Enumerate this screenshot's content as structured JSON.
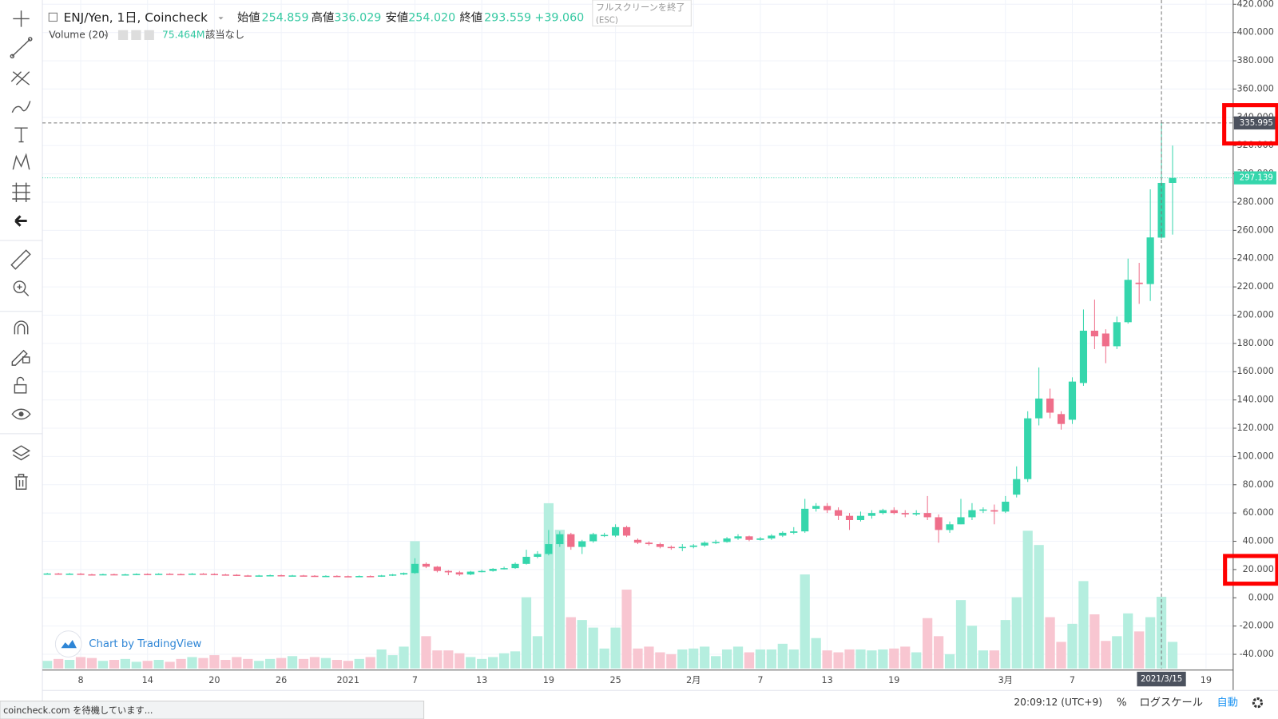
{
  "header": {
    "symbol": "ENJ/Yen, 1日, Coincheck",
    "ohlc": [
      {
        "label": "始値",
        "value": "254.859"
      },
      {
        "label": "高値",
        "value": "336.029"
      },
      {
        "label": "安値",
        "value": "254.020"
      },
      {
        "label": "終値",
        "value": "293.559"
      }
    ],
    "change": "+39.060",
    "volume_title": "Volume (20)",
    "volume_value": "75.464M",
    "volume_note": "該当なし"
  },
  "tooltip": {
    "line1": "フルスクリーンを終了",
    "line2": "(ESC)"
  },
  "watermark": "Chart by TradingView",
  "bottom_bar": {
    "time": "20:09:12 (UTC+9)",
    "percent": "%",
    "log": "ログスケール",
    "auto": "自動"
  },
  "status": "coincheck.com を待機しています...",
  "chart_data": {
    "type": "candlestick",
    "categories": [
      null,
      null,
      null,
      "8",
      null,
      null,
      null,
      null,
      null,
      "14",
      null,
      null,
      null,
      null,
      null,
      "20",
      null,
      null,
      null,
      null,
      null,
      "26",
      null,
      null,
      null,
      null,
      null,
      "2021",
      null,
      null,
      null,
      null,
      null,
      "7",
      null,
      null,
      null,
      null,
      null,
      "13",
      null,
      null,
      null,
      null,
      null,
      "19",
      null,
      null,
      null,
      null,
      null,
      "25",
      null,
      null,
      null,
      null,
      null,
      null,
      "2月",
      null,
      null,
      null,
      null,
      null,
      "7",
      null,
      null,
      null,
      null,
      null,
      "13",
      null,
      null,
      null,
      null,
      null,
      "19",
      null,
      null,
      null,
      null,
      null,
      null,
      null,
      null,
      null,
      "3月",
      null,
      null,
      null,
      null,
      null,
      "7",
      null,
      null,
      null,
      null,
      null,
      null,
      null,
      "2021/3/15",
      null,
      null,
      null,
      "19"
    ],
    "open": [
      17.0,
      17.2,
      16.8,
      17.1,
      16.6,
      16.5,
      16.7,
      16.4,
      16.6,
      16.9,
      16.7,
      17.0,
      16.8,
      16.6,
      17.1,
      16.9,
      16.5,
      16.3,
      15.8,
      15.4,
      15.8,
      16.0,
      15.5,
      15.8,
      15.6,
      15.2,
      15.5,
      15.3,
      15.0,
      15.4,
      15.2,
      15.8,
      16.5,
      17.5,
      24,
      22,
      19,
      18,
      16.5,
      18.5,
      19,
      20.5,
      21,
      24,
      29,
      31,
      38,
      45,
      36,
      40,
      44,
      44,
      50,
      41,
      39,
      38,
      36,
      35.5,
      36,
      37,
      39,
      39.5,
      42,
      43.5,
      41,
      42,
      44,
      46,
      47,
      63,
      65,
      62,
      58,
      55,
      58,
      60,
      62,
      60,
      59,
      60,
      57,
      48,
      52,
      57,
      62,
      62,
      61,
      73,
      84,
      127,
      141,
      130,
      126,
      152,
      189,
      187,
      178,
      195,
      223,
      222,
      254.859,
      293.559,
      null,
      null,
      null
    ],
    "close": [
      17.2,
      16.8,
      17.1,
      16.6,
      16.5,
      16.7,
      16.4,
      16.6,
      16.9,
      16.7,
      17.0,
      16.8,
      16.6,
      17.1,
      16.9,
      16.5,
      16.3,
      15.8,
      15.4,
      15.8,
      16.0,
      15.5,
      15.8,
      15.6,
      15.2,
      15.5,
      15.3,
      15.0,
      15.4,
      15.2,
      15.8,
      16.5,
      17.5,
      24,
      22,
      19,
      18,
      16.5,
      18.5,
      19,
      20.5,
      21,
      24,
      29,
      31,
      38,
      45,
      36,
      40,
      45,
      44.5,
      50,
      44,
      39,
      38,
      36,
      35.5,
      36,
      37,
      39,
      39.5,
      42,
      43.5,
      41,
      42,
      44,
      46,
      47,
      63,
      65,
      62,
      58,
      55,
      58,
      60,
      62,
      60,
      59,
      60,
      57,
      48,
      52,
      57,
      62,
      62.5,
      61,
      68,
      84,
      127,
      141,
      131,
      123,
      153,
      189,
      185,
      178,
      195,
      225,
      222,
      255,
      293.559,
      297.139,
      null,
      null,
      null
    ],
    "high": [
      17.6,
      17.6,
      17.5,
      17.5,
      17.0,
      17.1,
      17.1,
      17.0,
      17.3,
      17.3,
      17.4,
      17.4,
      17.2,
      17.5,
      17.5,
      17.3,
      16.9,
      16.7,
      16.2,
      16.2,
      16.4,
      16.4,
      16.2,
      16.2,
      16.0,
      15.9,
      15.9,
      15.7,
      15.8,
      15.8,
      16.2,
      16.9,
      17.9,
      28,
      25,
      22.5,
      19.5,
      19,
      19,
      20,
      21,
      22,
      25,
      34,
      33,
      48,
      47,
      46,
      41,
      46,
      46,
      52,
      51,
      42,
      40,
      39,
      37,
      38,
      38,
      40,
      41,
      43,
      45,
      44,
      43,
      45,
      47,
      50,
      70,
      67,
      67,
      64,
      60,
      61,
      62,
      63,
      64,
      62,
      62,
      72,
      59,
      54,
      70,
      67,
      64,
      66,
      72,
      93,
      132,
      163,
      148,
      132,
      156,
      204,
      211,
      190,
      199,
      240,
      237,
      289,
      336.029,
      320,
      null,
      null,
      null
    ],
    "low": [
      16.6,
      16.4,
      16.4,
      16.2,
      16.1,
      16.1,
      16.0,
      16.0,
      16.2,
      16.3,
      16.3,
      16.4,
      16.2,
      16.2,
      16.5,
      16.1,
      15.9,
      15.4,
      15.0,
      15.0,
      15.4,
      15.1,
      15.1,
      15.2,
      14.8,
      14.8,
      14.9,
      14.6,
      14.6,
      14.8,
      14.8,
      15.4,
      16.1,
      17,
      21,
      18,
      16,
      15.5,
      16,
      18,
      18.5,
      20,
      20.5,
      23.5,
      28,
      30,
      36,
      34,
      31,
      39,
      43,
      43,
      43,
      38,
      37,
      35,
      34,
      33,
      35,
      36,
      38,
      39,
      41,
      40,
      40.5,
      41,
      43,
      45,
      46,
      61,
      60,
      55,
      48,
      54,
      56,
      59,
      59,
      57,
      58,
      55,
      39,
      46,
      52,
      55,
      60,
      52,
      60,
      71,
      82,
      122,
      127,
      119,
      123,
      150,
      176,
      166,
      176,
      194,
      208,
      210,
      254.02,
      257,
      null,
      null,
      null
    ],
    "volume": [
      8,
      10,
      9,
      12,
      11,
      8,
      9,
      10,
      7,
      8,
      9,
      7,
      10,
      12,
      11,
      14,
      9,
      12,
      10,
      8,
      10,
      11,
      13,
      10,
      12,
      11,
      9,
      8,
      10,
      12,
      20,
      14,
      23,
      134,
      34,
      19,
      19,
      16,
      12,
      10,
      12,
      16,
      18,
      75,
      34,
      174,
      146,
      54,
      51,
      43,
      21,
      43,
      83,
      21,
      23,
      17,
      15,
      20,
      21,
      23,
      13,
      20,
      23,
      17,
      20,
      20,
      26,
      20,
      99,
      32,
      19,
      17,
      20,
      20,
      19,
      20,
      21,
      23,
      17,
      53,
      34,
      15,
      72,
      45,
      19,
      19,
      51,
      75,
      145,
      130,
      54,
      28,
      47,
      92,
      57,
      29,
      34,
      58,
      39,
      54,
      75.464,
      28,
      null,
      null,
      null
    ],
    "ylim": [
      -50,
      423
    ],
    "yticks": [
      {
        "value": -40,
        "label": "-40.000"
      },
      {
        "value": -20,
        "label": "-20.000"
      },
      {
        "value": 0,
        "label": "0.000"
      },
      {
        "value": 20,
        "label": "20.000"
      },
      {
        "value": 40,
        "label": "40.000"
      },
      {
        "value": 60,
        "label": "60.000"
      },
      {
        "value": 80,
        "label": "80.000"
      },
      {
        "value": 100,
        "label": "100.000"
      },
      {
        "value": 120,
        "label": "120.000"
      },
      {
        "value": 140,
        "label": "140.000"
      },
      {
        "value": 160,
        "label": "160.000"
      },
      {
        "value": 180,
        "label": "180.000"
      },
      {
        "value": 200,
        "label": "200.000"
      },
      {
        "value": 220,
        "label": "220.000"
      },
      {
        "value": 240,
        "label": "240.000"
      },
      {
        "value": 260,
        "label": "260.000"
      },
      {
        "value": 280,
        "label": "280.000"
      },
      {
        "value": 300,
        "label": "300.000"
      },
      {
        "value": 320,
        "label": "320.000"
      },
      {
        "value": 340,
        "label": "340.000"
      },
      {
        "value": 360,
        "label": "360.000"
      },
      {
        "value": 380,
        "label": "380.000"
      },
      {
        "value": 400,
        "label": "400.000"
      },
      {
        "value": 420,
        "label": "420.000"
      }
    ],
    "vlim": [
      0,
      200
    ],
    "grid": true,
    "up_color": "#35d6ac",
    "down_color": "#ef6e8a",
    "volume_up_color": "#b5eedf",
    "volume_down_color": "#f8c6d1",
    "last_price": 297.139,
    "crosshair": {
      "x": "2021/3/15",
      "y": 335.995
    }
  }
}
